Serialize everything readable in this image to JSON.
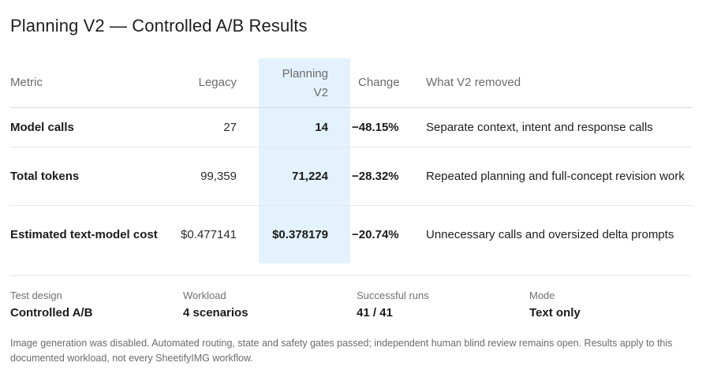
{
  "title": "Planning V2 — Controlled A/B Results",
  "table": {
    "headers": {
      "metric": "Metric",
      "legacy": "Legacy",
      "v2_line1": "Planning",
      "v2_line2": "V2",
      "change": "Change",
      "removed": "What V2 removed"
    },
    "rows": [
      {
        "metric": "Model calls",
        "legacy": "27",
        "v2": "14",
        "change": "−48.15%",
        "removed": "Separate context, intent and response calls"
      },
      {
        "metric": "Total tokens",
        "legacy": "99,359",
        "v2": "71,224",
        "change": "−28.32%",
        "removed": "Repeated planning and full-concept revision work"
      },
      {
        "metric": "Estimated text-model cost",
        "legacy": "$0.477141",
        "v2": "$0.378179",
        "change": "−20.74%",
        "removed": "Unnecessary calls and oversized delta prompts"
      }
    ],
    "highlight_color": "#e3f2fd"
  },
  "stats": [
    {
      "label": "Test design",
      "value": "Controlled A/B"
    },
    {
      "label": "Workload",
      "value": "4 scenarios"
    },
    {
      "label": "Successful runs",
      "value": "41 / 41"
    },
    {
      "label": "Mode",
      "value": "Text only"
    }
  ],
  "footnote": "Image generation was disabled. Automated routing, state and safety gates passed; independent human blind review remains open. Results apply to this documented workload, not every SheetifyIMG workflow."
}
